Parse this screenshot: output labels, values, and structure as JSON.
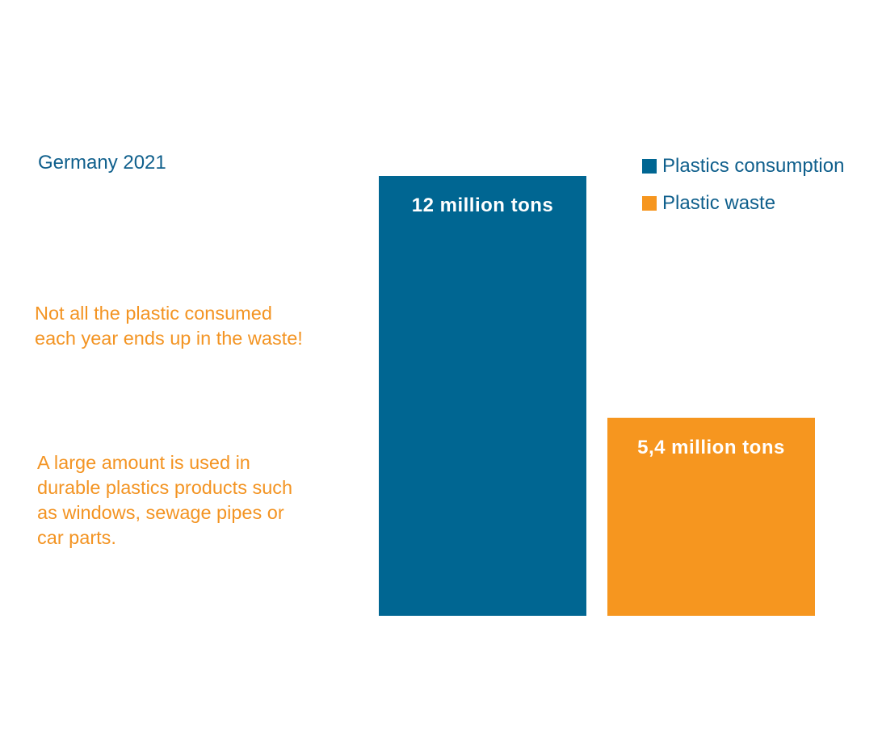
{
  "subtitle": "Germany 2021",
  "notes": [
    {
      "lines": [
        "Not all the plastic consumed",
        "each year ends up in the waste!"
      ]
    },
    {
      "lines": [
        "A large amount is used in",
        "durable plastics products such",
        "as windows, sewage pipes or",
        "car parts."
      ]
    }
  ],
  "chart_data": {
    "type": "bar",
    "title": "",
    "xlabel": "",
    "ylabel": "",
    "unit": "million tons",
    "categories": [
      "Plastics consumption",
      "Plastic waste"
    ],
    "values": [
      12,
      5.4
    ],
    "data_labels": [
      "12 million tons",
      "5,4 million tons"
    ],
    "colors": [
      "#006692",
      "#f6961f"
    ],
    "ylim": [
      0,
      12
    ],
    "grid": false,
    "legend_position": "top-right",
    "legend": [
      {
        "label": "Plastics consumption",
        "color": "#006692"
      },
      {
        "label": "Plastic waste",
        "color": "#f6961f"
      }
    ]
  }
}
